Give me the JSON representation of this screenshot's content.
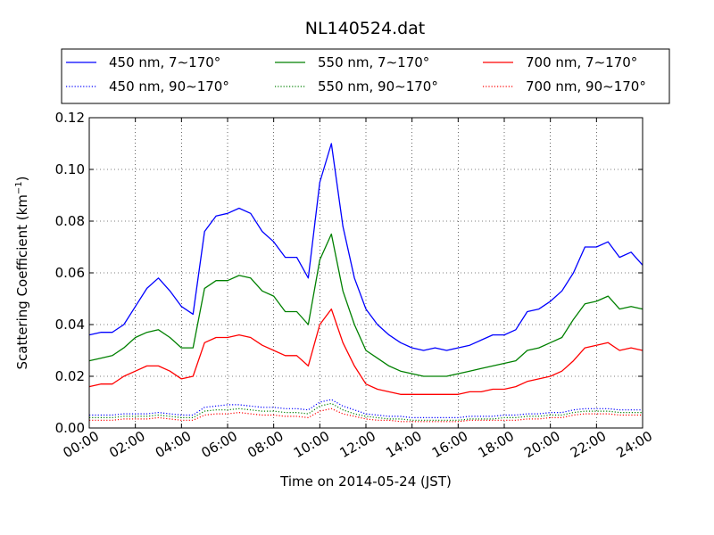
{
  "chart_data": {
    "type": "line",
    "title": "NL140524.dat",
    "xlabel": "Time on 2014-05-24 (JST)",
    "ylabel": "Scattering Coefficient (km",
    "ylabel_sup": "−1",
    "ylabel_close": ")",
    "xlim": [
      "00:00",
      "24:00"
    ],
    "ylim": [
      0.0,
      0.12
    ],
    "x_ticks": [
      "00:00",
      "02:00",
      "04:00",
      "06:00",
      "08:00",
      "10:00",
      "12:00",
      "14:00",
      "16:00",
      "18:00",
      "20:00",
      "22:00",
      "24:00"
    ],
    "y_ticks": [
      "0.00",
      "0.02",
      "0.04",
      "0.06",
      "0.08",
      "0.10",
      "0.12"
    ],
    "grid": true,
    "legend_position": "top",
    "x": [
      "00:00",
      "00:30",
      "01:00",
      "01:30",
      "02:00",
      "02:30",
      "03:00",
      "03:30",
      "04:00",
      "04:30",
      "05:00",
      "05:30",
      "06:00",
      "06:30",
      "07:00",
      "07:30",
      "08:00",
      "08:30",
      "09:00",
      "09:30",
      "10:00",
      "10:30",
      "11:00",
      "11:30",
      "12:00",
      "12:30",
      "13:00",
      "13:30",
      "14:00",
      "14:30",
      "15:00",
      "15:30",
      "16:00",
      "16:30",
      "17:00",
      "17:30",
      "18:00",
      "18:30",
      "19:00",
      "19:30",
      "20:00",
      "20:30",
      "21:00",
      "21:30",
      "22:00",
      "22:30",
      "23:00",
      "23:30",
      "24:00"
    ],
    "series": [
      {
        "name": "450 nm, 7∼170°",
        "color": "#0000ff",
        "style": "solid",
        "values": [
          0.036,
          0.037,
          0.037,
          0.04,
          0.047,
          0.054,
          0.058,
          0.053,
          0.047,
          0.044,
          0.076,
          0.082,
          0.083,
          0.085,
          0.083,
          0.076,
          0.072,
          0.066,
          0.066,
          0.058,
          0.095,
          0.11,
          0.078,
          0.058,
          0.046,
          0.04,
          0.036,
          0.033,
          0.031,
          0.03,
          0.031,
          0.03,
          0.031,
          0.032,
          0.034,
          0.036,
          0.036,
          0.038,
          0.045,
          0.046,
          0.049,
          0.053,
          0.06,
          0.07,
          0.07,
          0.072,
          0.066,
          0.068,
          0.063
        ]
      },
      {
        "name": "550 nm, 7∼170°",
        "color": "#008000",
        "style": "solid",
        "values": [
          0.026,
          0.027,
          0.028,
          0.031,
          0.035,
          0.037,
          0.038,
          0.035,
          0.031,
          0.031,
          0.054,
          0.057,
          0.057,
          0.059,
          0.058,
          0.053,
          0.051,
          0.045,
          0.045,
          0.04,
          0.065,
          0.075,
          0.053,
          0.04,
          0.03,
          0.027,
          0.024,
          0.022,
          0.021,
          0.02,
          0.02,
          0.02,
          0.021,
          0.022,
          0.023,
          0.024,
          0.025,
          0.026,
          0.03,
          0.031,
          0.033,
          0.035,
          0.042,
          0.048,
          0.049,
          0.051,
          0.046,
          0.047,
          0.046
        ]
      },
      {
        "name": "700 nm, 7∼170°",
        "color": "#ff0000",
        "style": "solid",
        "values": [
          0.016,
          0.017,
          0.017,
          0.02,
          0.022,
          0.024,
          0.024,
          0.022,
          0.019,
          0.02,
          0.033,
          0.035,
          0.035,
          0.036,
          0.035,
          0.032,
          0.03,
          0.028,
          0.028,
          0.024,
          0.04,
          0.046,
          0.033,
          0.024,
          0.017,
          0.015,
          0.014,
          0.013,
          0.013,
          0.013,
          0.013,
          0.013,
          0.013,
          0.014,
          0.014,
          0.015,
          0.015,
          0.016,
          0.018,
          0.019,
          0.02,
          0.022,
          0.026,
          0.031,
          0.032,
          0.033,
          0.03,
          0.031,
          0.03
        ]
      },
      {
        "name": "450 nm, 90∼170°",
        "color": "#0000ff",
        "style": "dotted",
        "values": [
          0.005,
          0.005,
          0.005,
          0.0055,
          0.0055,
          0.0055,
          0.006,
          0.0055,
          0.005,
          0.005,
          0.008,
          0.0085,
          0.009,
          0.009,
          0.0085,
          0.008,
          0.008,
          0.0075,
          0.0075,
          0.007,
          0.01,
          0.011,
          0.0085,
          0.007,
          0.0055,
          0.005,
          0.0045,
          0.0045,
          0.004,
          0.004,
          0.004,
          0.004,
          0.004,
          0.0045,
          0.0045,
          0.0045,
          0.005,
          0.005,
          0.0055,
          0.0055,
          0.006,
          0.006,
          0.007,
          0.0075,
          0.0075,
          0.0075,
          0.007,
          0.007,
          0.007
        ]
      },
      {
        "name": "550 nm, 90∼170°",
        "color": "#008000",
        "style": "dotted",
        "values": [
          0.004,
          0.004,
          0.004,
          0.0045,
          0.0045,
          0.0045,
          0.005,
          0.0045,
          0.004,
          0.004,
          0.0065,
          0.007,
          0.007,
          0.0075,
          0.007,
          0.0065,
          0.0065,
          0.006,
          0.006,
          0.0055,
          0.0085,
          0.0095,
          0.007,
          0.0055,
          0.0045,
          0.004,
          0.0035,
          0.0035,
          0.003,
          0.003,
          0.003,
          0.003,
          0.003,
          0.0035,
          0.0035,
          0.0035,
          0.004,
          0.004,
          0.0045,
          0.0045,
          0.005,
          0.005,
          0.006,
          0.0065,
          0.0065,
          0.0065,
          0.006,
          0.006,
          0.006
        ]
      },
      {
        "name": "700 nm, 90∼170°",
        "color": "#ff0000",
        "style": "dotted",
        "values": [
          0.003,
          0.003,
          0.003,
          0.0035,
          0.0035,
          0.0035,
          0.004,
          0.0035,
          0.003,
          0.003,
          0.005,
          0.0055,
          0.0055,
          0.006,
          0.0055,
          0.005,
          0.005,
          0.0045,
          0.0045,
          0.004,
          0.0065,
          0.0075,
          0.0055,
          0.0045,
          0.0035,
          0.003,
          0.003,
          0.0025,
          0.0025,
          0.0025,
          0.0025,
          0.0025,
          0.0025,
          0.003,
          0.003,
          0.003,
          0.003,
          0.003,
          0.0035,
          0.0035,
          0.004,
          0.004,
          0.005,
          0.0055,
          0.0055,
          0.0055,
          0.005,
          0.005,
          0.005
        ]
      }
    ]
  }
}
